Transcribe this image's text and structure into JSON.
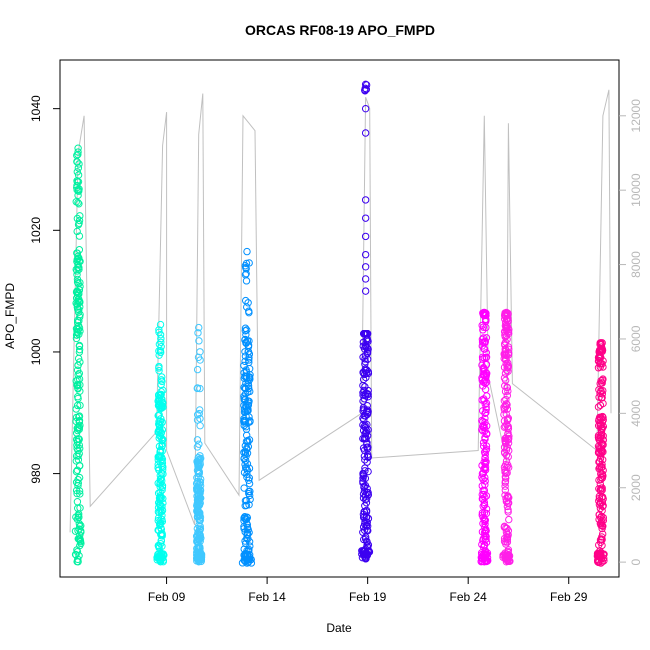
{
  "chart_data": {
    "type": "scatter",
    "title": "ORCAS RF08-19 APO_FMPD",
    "xlabel": "Date",
    "ylabel": "APO_FMPD",
    "x_axis": {
      "unit": "days in February",
      "range": [
        3.7,
        31.5
      ],
      "ticks": [
        9,
        14,
        19,
        24,
        29
      ],
      "tick_labels": [
        "Feb 09",
        "Feb 14",
        "Feb 19",
        "Feb 24",
        "Feb 29"
      ]
    },
    "y_axis_left": {
      "range": [
        963,
        1048
      ],
      "ticks": [
        980,
        1000,
        1020,
        1040
      ],
      "tick_labels": [
        "980",
        "1000",
        "1020",
        "1040"
      ]
    },
    "y_axis_right": {
      "range": [
        -400,
        13500
      ],
      "ticks": [
        0,
        2000,
        4000,
        6000,
        8000,
        10000,
        12000
      ],
      "tick_labels": [
        "0",
        "2000",
        "4000",
        "6000",
        "8000",
        "10000",
        "12000"
      ],
      "color": "#b8b8b8"
    },
    "grid": false,
    "legend": "none",
    "altitude_line_color": "#c0c0c0",
    "flights": [
      {
        "date": "Feb 05",
        "x": 4.6,
        "width": 0.28,
        "color": "#00f0a0",
        "ymin": 965.5,
        "ymax": 1033.5,
        "dense_lo": 972,
        "dense_hi": 1026,
        "outliers": []
      },
      {
        "date": "Feb 08",
        "x": 8.7,
        "width": 0.35,
        "color": "#00ffee",
        "ymin": 965.5,
        "ymax": 1004.5,
        "dense_lo": 966,
        "dense_hi": 994,
        "outliers": []
      },
      {
        "date": "Feb 10",
        "x": 10.6,
        "width": 0.3,
        "color": "#40c8ff",
        "ymin": 965.5,
        "ymax": 1004.0,
        "dense_lo": 965.8,
        "dense_hi": 983,
        "outliers": []
      },
      {
        "date": "Feb 13",
        "x": 13.0,
        "width": 0.45,
        "color": "#0090ff",
        "ymin": 965.3,
        "ymax": 1016.5,
        "dense_lo": 966,
        "dense_hi": 1002,
        "outliers": []
      },
      {
        "date": "Feb 19",
        "x": 18.9,
        "width": 0.4,
        "color": "#3c00f0",
        "ymin": 966.0,
        "ymax": 1044.0,
        "dense_lo": 966.5,
        "dense_hi": 1003,
        "outliers": [
          1040,
          1036,
          1025,
          1022,
          1019,
          1016,
          1014,
          1012,
          1010
        ]
      },
      {
        "date": "Feb 25",
        "x": 24.8,
        "width": 0.35,
        "color": "#ff00ff",
        "ymin": 965.5,
        "ymax": 1006.5,
        "dense_lo": 966,
        "dense_hi": 1006,
        "outliers": []
      },
      {
        "date": "Feb 26",
        "x": 25.9,
        "width": 0.35,
        "color": "#ff20e8",
        "ymin": 965.5,
        "ymax": 1006.5,
        "dense_lo": 966,
        "dense_hi": 1005,
        "outliers": []
      },
      {
        "date": "Feb 30",
        "x": 30.6,
        "width": 0.35,
        "color": "#ff0088",
        "ymin": 965.3,
        "ymax": 1001.5,
        "dense_lo": 966,
        "dense_hi": 1000,
        "outliers": []
      }
    ],
    "altitude_path": [
      [
        4.2,
        800
      ],
      [
        4.6,
        11000
      ],
      [
        4.9,
        12000
      ],
      [
        5.2,
        1500
      ],
      [
        8.5,
        3500
      ],
      [
        8.8,
        11200
      ],
      [
        9.0,
        12100
      ],
      [
        9.0,
        3000
      ],
      [
        10.4,
        1000
      ],
      [
        10.6,
        11500
      ],
      [
        10.8,
        12600
      ],
      [
        10.9,
        3200
      ],
      [
        12.6,
        1800
      ],
      [
        12.8,
        12000
      ],
      [
        13.1,
        11800
      ],
      [
        13.4,
        11600
      ],
      [
        13.6,
        2200
      ],
      [
        18.7,
        4000
      ],
      [
        18.9,
        12500
      ],
      [
        19.1,
        12200
      ],
      [
        19.2,
        2800
      ],
      [
        24.5,
        3000
      ],
      [
        24.8,
        12000
      ],
      [
        25.0,
        5000
      ],
      [
        25.9,
        2700
      ],
      [
        26.0,
        11800
      ],
      [
        26.2,
        4800
      ],
      [
        30.4,
        3000
      ],
      [
        30.7,
        12000
      ],
      [
        31.0,
        12700
      ],
      [
        31.1,
        4000
      ]
    ]
  }
}
